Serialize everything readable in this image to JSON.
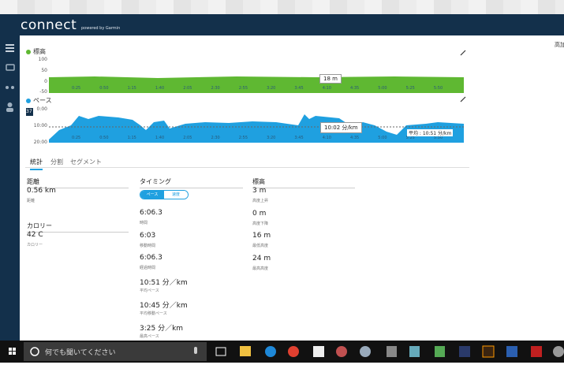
{
  "header": {
    "logo": "connect",
    "tagline": "powered by Garmin"
  },
  "right_panel": {
    "label": "高加"
  },
  "charts": [
    {
      "title": "標高",
      "y_labels": [
        "100",
        "50",
        "0",
        "-50"
      ],
      "x_labels": [
        "0:25",
        "0:50",
        "1:15",
        "1:40",
        "2:05",
        "2:30",
        "2:55",
        "3:20",
        "3:45",
        "4:10",
        "4:35",
        "5:00",
        "5:25",
        "5:50"
      ],
      "tooltip": "18 m"
    },
    {
      "title": "ペース",
      "badge": "37",
      "y_labels": [
        "0:00",
        "10:00",
        "20:00"
      ],
      "x_labels": [
        "0:25",
        "0:50",
        "1:15",
        "1:40",
        "2:05",
        "2:30",
        "2:55",
        "3:20",
        "3:45",
        "4:10",
        "4:35",
        "5:00",
        "5:25",
        "5:50"
      ],
      "tooltip": "10:02 分/km",
      "average_label": "平均 : 10:51 分/km"
    }
  ],
  "tabs": [
    "統計",
    "分割",
    "セグメント"
  ],
  "sections": [
    {
      "heading": "距離",
      "stats": [
        {
          "value": "0.56 km",
          "label": "距離"
        }
      ]
    },
    {
      "heading": "カロリー",
      "stats": [
        {
          "value": "42 C",
          "label": "カロリー"
        }
      ]
    },
    {
      "heading": "タイミング",
      "toggle": [
        "ペース",
        "速度"
      ],
      "stats": [
        {
          "value": "6:06.3",
          "label": "時間"
        },
        {
          "value": "6:03",
          "label": "移動時間"
        },
        {
          "value": "6:06.3",
          "label": "経過時間"
        },
        {
          "value": "10:51 分／km",
          "label": "平均ペース"
        },
        {
          "value": "10:45 分／km",
          "label": "平均移動ペース"
        },
        {
          "value": "3:25 分／km",
          "label": "最高ペース"
        }
      ]
    },
    {
      "heading": "標高",
      "stats": [
        {
          "value": "3 m",
          "label": "高度上昇"
        },
        {
          "value": "0 m",
          "label": "高度下降"
        },
        {
          "value": "16 m",
          "label": "最低高度"
        },
        {
          "value": "24 m",
          "label": "最高高度"
        }
      ]
    }
  ],
  "taskbar": {
    "search": "何でも聞いてください"
  }
}
